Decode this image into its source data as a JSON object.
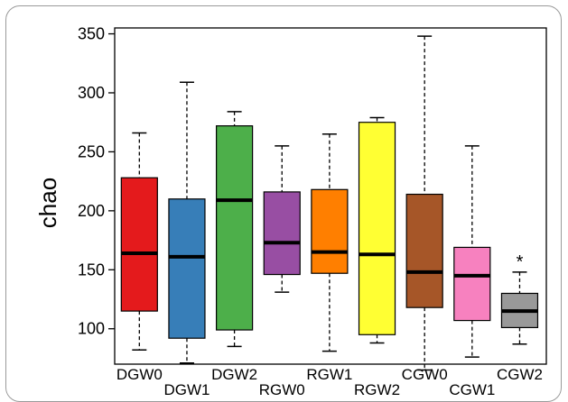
{
  "chart_data": {
    "type": "boxplot",
    "ylabel": "chao",
    "ylim": [
      70,
      355
    ],
    "yticks": [
      100,
      150,
      200,
      250,
      300,
      350
    ],
    "grid": false,
    "groups": [
      {
        "name": "DGW0",
        "color": "#e41a1c",
        "whisker_low": 82,
        "q1": 115,
        "median": 164,
        "q3": 228,
        "whisker_high": 266
      },
      {
        "name": "DGW1",
        "color": "#377eb8",
        "whisker_low": 71,
        "q1": 92,
        "median": 161,
        "q3": 210,
        "whisker_high": 309
      },
      {
        "name": "DGW2",
        "color": "#4daf4a",
        "whisker_low": 85,
        "q1": 99,
        "median": 209,
        "q3": 272,
        "whisker_high": 284
      },
      {
        "name": "RGW0",
        "color": "#984ea3",
        "whisker_low": 131,
        "q1": 146,
        "median": 173,
        "q3": 216,
        "whisker_high": 255
      },
      {
        "name": "RGW1",
        "color": "#ff7f00",
        "whisker_low": 81,
        "q1": 147,
        "median": 165,
        "q3": 218,
        "whisker_high": 265
      },
      {
        "name": "RGW2",
        "color": "#ffff33",
        "whisker_low": 88,
        "q1": 95,
        "median": 163,
        "q3": 275,
        "whisker_high": 279
      },
      {
        "name": "CGW0",
        "color": "#a65628",
        "whisker_low": 65,
        "q1": 118,
        "median": 148,
        "q3": 214,
        "whisker_high": 348
      },
      {
        "name": "CGW1",
        "color": "#f781bf",
        "whisker_low": 76,
        "q1": 107,
        "median": 145,
        "q3": 169,
        "whisker_high": 255
      },
      {
        "name": "CGW2",
        "color": "#999999",
        "whisker_low": 87,
        "q1": 101,
        "median": 115,
        "q3": 130,
        "whisker_high": 148
      }
    ],
    "annotations": [
      {
        "group": "CGW2",
        "text": "*"
      }
    ]
  }
}
